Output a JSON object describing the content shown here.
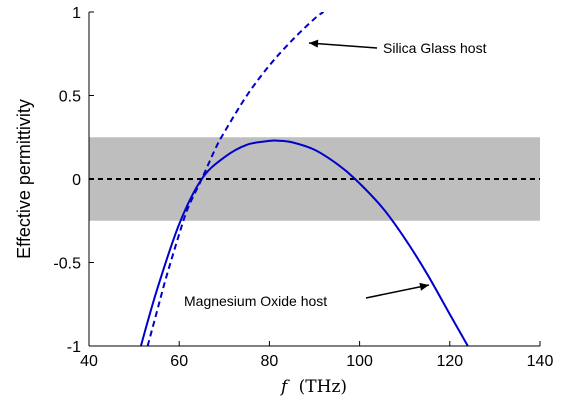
{
  "chart_data": {
    "type": "line",
    "xlabel_var": "f",
    "xlabel_unit": "(THz)",
    "ylabel": "Effective permittivity",
    "xlim": [
      40,
      140
    ],
    "ylim": [
      -1,
      1
    ],
    "x_ticks": [
      40,
      60,
      80,
      100,
      120,
      140
    ],
    "x_tick_labels": [
      "40",
      "60",
      "80",
      "100",
      "120",
      "140"
    ],
    "y_ticks": [
      -1,
      -0.5,
      0,
      0.5,
      1
    ],
    "y_tick_labels": [
      "-1",
      "-0.5",
      "0",
      "0.5",
      "1"
    ],
    "shaded_band": {
      "y_range": [
        -0.25,
        0.25
      ],
      "color": "#bebebe"
    },
    "zero_line": {
      "y": 0,
      "style": "dashed",
      "color": "#000000"
    },
    "series": [
      {
        "style": "solid",
        "color": "#0000cc",
        "x": [
          51.5,
          55,
          60,
          65,
          70,
          75,
          80,
          82,
          85,
          90,
          95,
          99,
          105,
          110,
          115,
          120,
          124
        ],
        "y": [
          -1.0,
          -0.67,
          -0.27,
          0.0,
          0.13,
          0.205,
          0.228,
          0.229,
          0.22,
          0.175,
          0.09,
          0.0,
          -0.17,
          -0.355,
          -0.57,
          -0.81,
          -1.0
        ]
      },
      {
        "style": "dashed",
        "color": "#0000cc",
        "x": [
          53,
          55,
          57,
          60,
          62,
          65,
          68,
          70,
          75,
          80,
          85,
          90,
          92
        ],
        "y": [
          -1.0,
          -0.8,
          -0.6,
          -0.33,
          -0.17,
          0.0,
          0.18,
          0.28,
          0.5,
          0.68,
          0.83,
          0.96,
          1.0
        ]
      }
    ],
    "annotations": [
      {
        "text": "Silica Glass host",
        "at": [
          92,
          0.86
        ]
      },
      {
        "text": "Magnesium Oxide host",
        "at": [
          117,
          -0.63
        ]
      }
    ]
  }
}
